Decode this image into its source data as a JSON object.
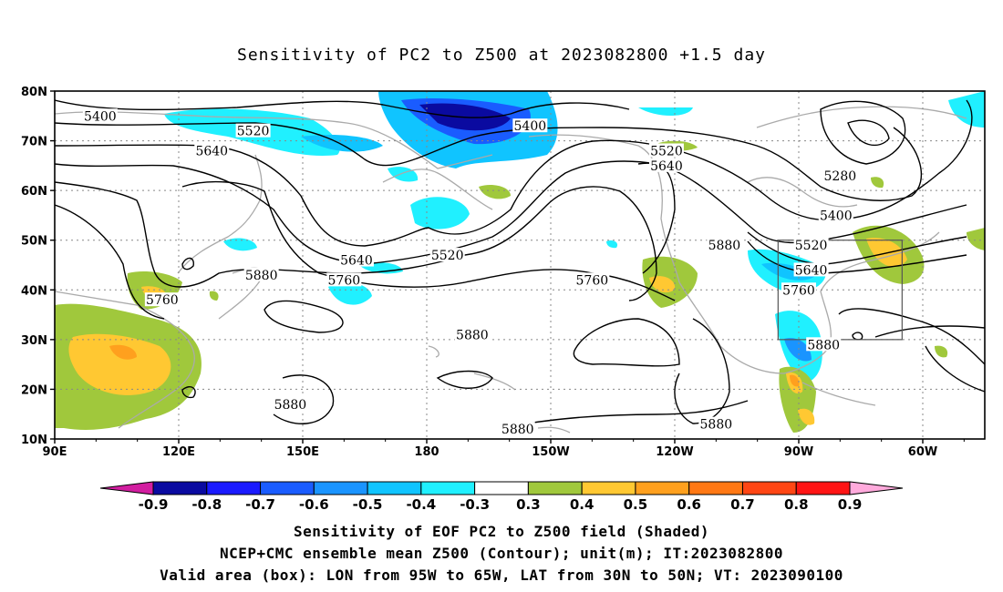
{
  "title": "Sensitivity of PC2 to Z500 at 2023082800 +1.5 day",
  "map": {
    "lat_ticks": [
      "80N",
      "70N",
      "60N",
      "50N",
      "40N",
      "30N",
      "20N",
      "10N"
    ],
    "lon_ticks": [
      "90E",
      "120E",
      "150E",
      "180",
      "150W",
      "120W",
      "90W",
      "60W"
    ],
    "lon_range": [
      90,
      315
    ],
    "lat_range": [
      10,
      80
    ],
    "valid_box": {
      "lon": [
        265,
        295
      ],
      "lat": [
        30,
        50
      ]
    },
    "contour_labels": [
      {
        "text": "5400",
        "lon": 101,
        "lat": 75
      },
      {
        "text": "5520",
        "lon": 138,
        "lat": 72
      },
      {
        "text": "5640",
        "lon": 128,
        "lat": 68
      },
      {
        "text": "5400",
        "lon": 205,
        "lat": 73
      },
      {
        "text": "5520",
        "lon": 238,
        "lat": 68
      },
      {
        "text": "5640",
        "lon": 238,
        "lat": 65
      },
      {
        "text": "5280",
        "lon": 280,
        "lat": 63
      },
      {
        "text": "5400",
        "lon": 279,
        "lat": 55
      },
      {
        "text": "5520",
        "lon": 273,
        "lat": 49
      },
      {
        "text": "5880",
        "lon": 252,
        "lat": 49
      },
      {
        "text": "5640",
        "lon": 273,
        "lat": 44
      },
      {
        "text": "5760",
        "lon": 270,
        "lat": 40
      },
      {
        "text": "5520",
        "lon": 185,
        "lat": 47
      },
      {
        "text": "5640",
        "lon": 163,
        "lat": 46
      },
      {
        "text": "5760",
        "lon": 160,
        "lat": 42
      },
      {
        "text": "5880",
        "lon": 140,
        "lat": 43
      },
      {
        "text": "5760",
        "lon": 220,
        "lat": 42
      },
      {
        "text": "5760",
        "lon": 116,
        "lat": 38
      },
      {
        "text": "5880",
        "lon": 191,
        "lat": 31
      },
      {
        "text": "5880",
        "lon": 276,
        "lat": 29
      },
      {
        "text": "5880",
        "lon": 147,
        "lat": 17
      },
      {
        "text": "5880",
        "lon": 202,
        "lat": 12
      },
      {
        "text": "5880",
        "lon": 250,
        "lat": 13
      }
    ]
  },
  "colorbar": {
    "labels": [
      "-0.9",
      "-0.8",
      "-0.7",
      "-0.6",
      "-0.5",
      "-0.4",
      "-0.3",
      "0.3",
      "0.4",
      "0.5",
      "0.6",
      "0.7",
      "0.8",
      "0.9"
    ],
    "colors": [
      "#0a0aa0",
      "#1a1aff",
      "#1a5cff",
      "#1a94ff",
      "#10c4ff",
      "#20f0ff",
      "#ffffff",
      "#a0c83c",
      "#ffc832",
      "#ffa01e",
      "#ff7814",
      "#ff4614",
      "#ff1414"
    ],
    "low_end_color": "#d21ea0",
    "high_end_color": "#ffaadc"
  },
  "footer": {
    "line1": "Sensitivity of EOF PC2 to Z500 field (Shaded)",
    "line2": "NCEP+CMC ensemble mean Z500 (Contour); unit(m); IT:2023082800",
    "line3": "Valid area (box): LON from 95W to 65W, LAT from 30N to 50N; VT: 2023090100"
  }
}
